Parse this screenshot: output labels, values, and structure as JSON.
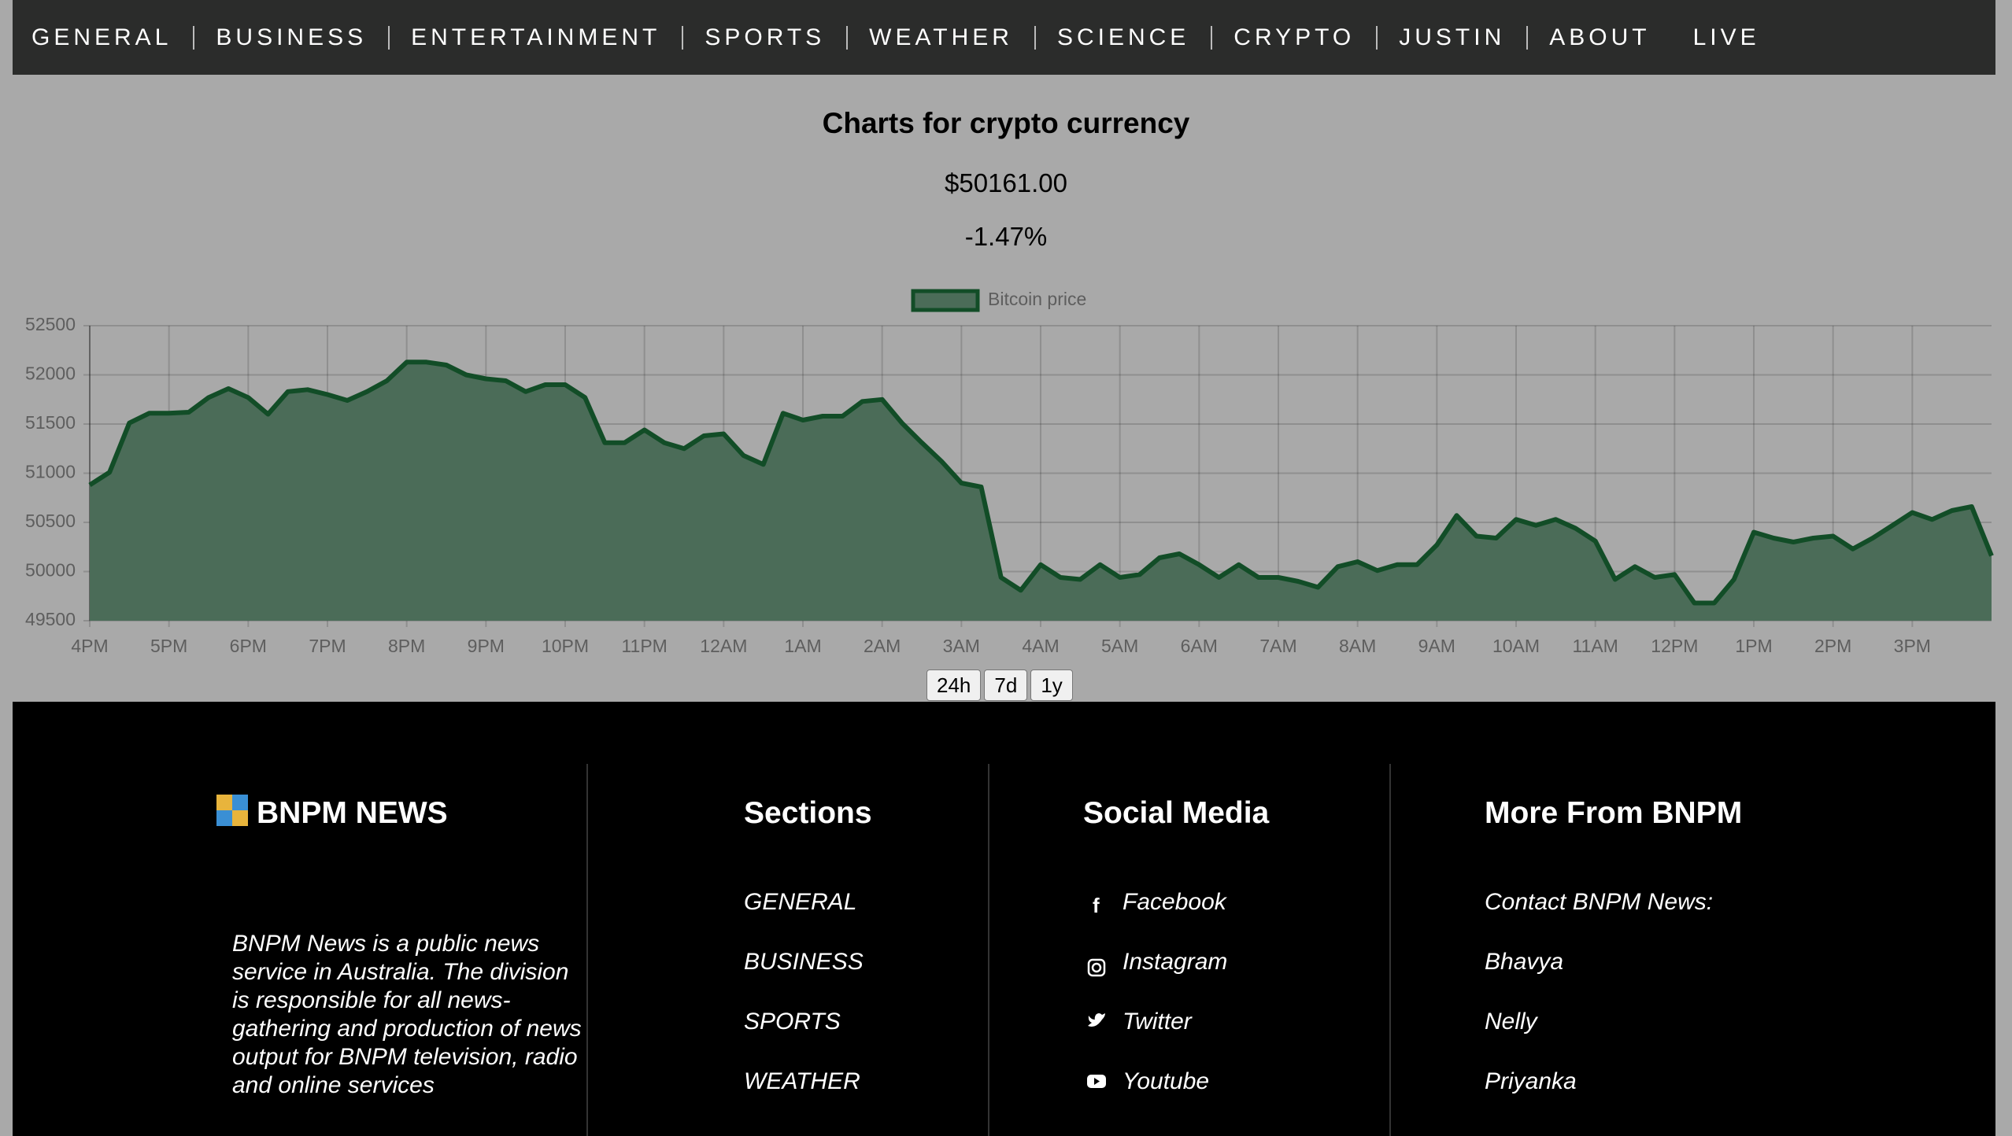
{
  "nav": {
    "items": [
      "GENERAL",
      "BUSINESS",
      "ENTERTAINMENT",
      "SPORTS",
      "WEATHER",
      "SCIENCE",
      "CRYPTO",
      "JUSTIN",
      "ABOUT",
      "LIVE"
    ]
  },
  "header": {
    "title": "Charts for crypto currency",
    "price": "$50161.00",
    "change": "-1.47%"
  },
  "chart_data": {
    "type": "line",
    "categories": [
      "4PM",
      null,
      null,
      null,
      "5PM",
      null,
      null,
      null,
      "6PM",
      null,
      null,
      null,
      "7PM",
      null,
      null,
      null,
      "8PM",
      null,
      null,
      null,
      "9PM",
      null,
      null,
      null,
      "10PM",
      null,
      null,
      null,
      "11PM",
      null,
      null,
      null,
      "12AM",
      null,
      null,
      null,
      "1AM",
      null,
      null,
      null,
      "2AM",
      null,
      null,
      null,
      "3AM",
      null,
      null,
      null,
      "4AM",
      null,
      null,
      null,
      "5AM",
      null,
      null,
      null,
      "6AM",
      null,
      null,
      null,
      "7AM",
      null,
      null,
      null,
      "8AM",
      null,
      null,
      null,
      "9AM",
      null,
      null,
      null,
      "10AM",
      null,
      null,
      null,
      "11AM",
      null,
      null,
      null,
      "12PM",
      null,
      null,
      null,
      "1PM",
      null,
      null,
      null,
      "2PM",
      null,
      null,
      null,
      "3PM",
      null,
      null,
      null,
      null
    ],
    "series": [
      {
        "name": "Bitcoin price",
        "color": "#124d27",
        "fill": "#4b6c58",
        "values": [
          50880,
          51010,
          51510,
          51610,
          51610,
          51620,
          51770,
          51860,
          51770,
          51600,
          51830,
          51850,
          51800,
          51740,
          51830,
          51940,
          52130,
          52130,
          52100,
          52000,
          51960,
          51940,
          51830,
          51900,
          51900,
          51770,
          51310,
          51310,
          51440,
          51310,
          51250,
          51380,
          51400,
          51180,
          51090,
          51610,
          51540,
          51580,
          51580,
          51730,
          51750,
          51510,
          51310,
          51120,
          50900,
          50860,
          49940,
          49810,
          50070,
          49940,
          49920,
          50070,
          49940,
          49970,
          50140,
          50180,
          50070,
          49940,
          50070,
          49940,
          49940,
          49900,
          49840,
          50050,
          50100,
          50010,
          50070,
          50070,
          50270,
          50570,
          50360,
          50340,
          50530,
          50470,
          50530,
          50440,
          50310,
          49920,
          50050,
          49940,
          49970,
          49680,
          49680,
          49920,
          50400,
          50340,
          50300,
          50340,
          50360,
          50230,
          50340,
          50470,
          50600,
          50530,
          50620,
          50660,
          50160
        ]
      }
    ],
    "ylim": [
      49500,
      52500
    ],
    "yticks": [
      49500,
      50000,
      50500,
      51000,
      51500,
      52000,
      52500
    ],
    "grid": true,
    "legend": "top"
  },
  "controls": {
    "buttons": [
      "24h",
      "7d",
      "1y"
    ]
  },
  "footer": {
    "brand": "BNPM NEWS",
    "description": "BNPM News is a public news service in Australia. The division is responsible for all news-gathering and production of news output for BNPM television, radio and online services",
    "sections": {
      "title": "Sections",
      "items": [
        "GENERAL",
        "BUSINESS",
        "SPORTS",
        "WEATHER"
      ]
    },
    "social": {
      "title": "Social Media",
      "items": [
        "Facebook",
        "Instagram",
        "Twitter",
        "Youtube"
      ]
    },
    "more": {
      "title": "More From BNPM",
      "items": [
        "Contact BNPM News:",
        "Bhavya",
        "Nelly",
        "Priyanka"
      ]
    }
  }
}
